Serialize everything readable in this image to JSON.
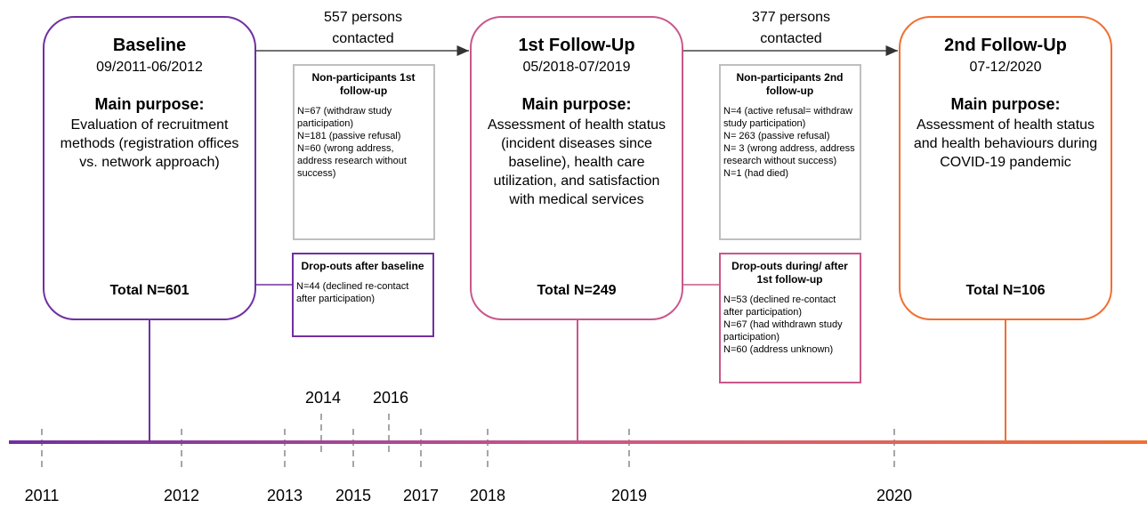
{
  "stages": [
    {
      "title": "Baseline",
      "dates": "09/2011-06/2012",
      "purpose_label": "Main purpose:",
      "purpose": "Evaluation of recruitment methods (registration offices vs. network approach)",
      "total": "Total N=601"
    },
    {
      "title": "1st Follow-Up",
      "dates": "05/2018-07/2019",
      "purpose_label": "Main purpose:",
      "purpose": "Assessment of health status (incident diseases since baseline), health care utilization, and satisfaction with medical services",
      "total": "Total N=249"
    },
    {
      "title": "2nd Follow-Up",
      "dates": "07-12/2020",
      "purpose_label": "Main purpose:",
      "purpose": "Assessment of health status and health behaviours during COVID-19 pandemic",
      "total": "Total N=106"
    }
  ],
  "contacts": [
    "557 persons contacted",
    "377 persons contacted"
  ],
  "non_participants": [
    {
      "title": "Non-participants 1st follow-up",
      "items": [
        "N=67 (withdraw study participation)",
        "N=181 (passive refusal)",
        "N=60 (wrong address, address research without success)"
      ]
    },
    {
      "title": "Non-participants 2nd follow-up",
      "items": [
        "N=4 (active refusal= withdraw study participation)",
        "N= 263 (passive refusal)",
        "N= 3 (wrong address, address research without success)",
        "N=1 (had died)"
      ]
    }
  ],
  "dropouts": [
    {
      "title": "Drop-outs after baseline",
      "items": [
        "N=44 (declined re-contact after participation)"
      ]
    },
    {
      "title": "Drop-outs during/ after 1st follow-up",
      "items": [
        "N=53 (declined re-contact after participation)",
        "N=67 (had withdrawn study participation)",
        "N=60 (address unknown)"
      ]
    }
  ],
  "timeline": {
    "years": [
      "2011",
      "2012",
      "2013",
      "2014",
      "2015",
      "2016",
      "2017",
      "2018",
      "2019",
      "2020"
    ]
  }
}
